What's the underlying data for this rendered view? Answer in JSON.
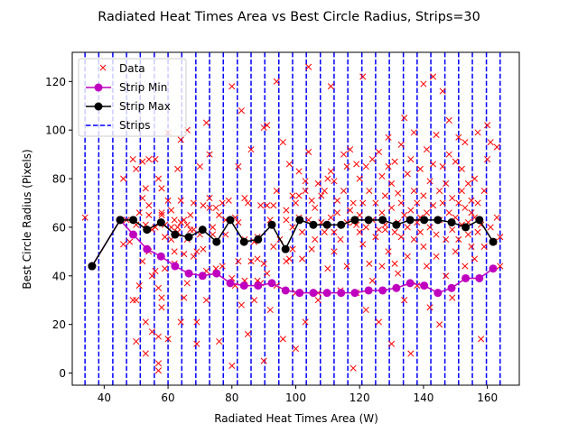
{
  "chart_data": {
    "type": "scatter",
    "title": "Radiated Heat Times Area vs Best Circle Radius, Strips=30",
    "xlabel": "Radiated Heat Times Area (W)",
    "ylabel": "Best Circle Radius (Pixels)",
    "xlim": [
      30,
      170
    ],
    "ylim": [
      -5,
      132
    ],
    "xticks": [
      40,
      60,
      80,
      100,
      120,
      140,
      160
    ],
    "yticks": [
      0,
      20,
      40,
      60,
      80,
      100,
      120
    ],
    "legend_position": "top-left",
    "legend": [
      "Data",
      "Strip Min",
      "Strip Max",
      "Strips"
    ],
    "colors": {
      "data": "#ff0000",
      "strip_min": "#bf00bf",
      "strip_max": "#000000",
      "strips": "#0000ff"
    },
    "strips_x": [
      34,
      38.3,
      42.7,
      47,
      51.3,
      55.7,
      60,
      64.3,
      68.7,
      73,
      77.3,
      81.7,
      86,
      90.3,
      94.7,
      99,
      103.3,
      107.7,
      112,
      116.3,
      120.7,
      125,
      129.3,
      133.7,
      138,
      142.3,
      146.7,
      151,
      155.3,
      159.7,
      164
    ],
    "strip_centers": [
      36.2,
      45,
      49.1,
      53.4,
      57.8,
      62.2,
      66.5,
      70.8,
      75.2,
      79.5,
      83.8,
      88.2,
      92.5,
      96.8,
      101.2,
      105.5,
      109.8,
      114.2,
      118.5,
      122.8,
      127.2,
      131.5,
      135.8,
      140.2,
      144.5,
      148.8,
      153.2,
      157.5,
      161.8
    ],
    "series": [
      {
        "name": "Strip Min",
        "values": [
          44,
          63,
          57,
          51,
          48,
          44,
          41,
          40,
          41,
          37,
          36,
          36,
          37,
          34,
          33,
          33,
          33,
          33,
          33,
          34,
          34,
          35,
          37,
          36,
          33,
          35,
          39,
          39,
          43
        ]
      },
      {
        "name": "Strip Max",
        "values": [
          44,
          63,
          63,
          59,
          62,
          57,
          56,
          59,
          54,
          63,
          54,
          55,
          61,
          51,
          63,
          61,
          61,
          61,
          63,
          63,
          63,
          61,
          63,
          63,
          63,
          62,
          60,
          63,
          54
        ]
      }
    ],
    "data_points": [
      [
        34,
        64
      ],
      [
        45,
        63
      ],
      [
        46,
        53
      ],
      [
        46,
        80
      ],
      [
        47,
        63
      ],
      [
        48,
        54
      ],
      [
        49,
        30
      ],
      [
        49,
        57
      ],
      [
        49,
        88
      ],
      [
        50,
        30
      ],
      [
        50,
        61
      ],
      [
        50,
        84
      ],
      [
        50,
        13
      ],
      [
        51,
        66
      ],
      [
        51,
        36
      ],
      [
        52,
        87
      ],
      [
        52,
        72
      ],
      [
        52,
        46
      ],
      [
        53,
        61
      ],
      [
        53,
        76
      ],
      [
        53,
        8
      ],
      [
        53,
        21
      ],
      [
        54,
        50
      ],
      [
        54,
        88
      ],
      [
        54,
        69
      ],
      [
        54,
        65
      ],
      [
        55,
        40
      ],
      [
        55,
        59
      ],
      [
        55,
        17
      ],
      [
        56,
        42
      ],
      [
        56,
        88
      ],
      [
        56,
        60
      ],
      [
        57,
        35
      ],
      [
        57,
        80
      ],
      [
        57,
        1
      ],
      [
        57,
        4
      ],
      [
        57,
        15
      ],
      [
        58,
        66
      ],
      [
        58,
        27
      ],
      [
        58,
        31
      ],
      [
        58,
        65
      ],
      [
        58,
        76
      ],
      [
        59,
        56
      ],
      [
        59,
        61
      ],
      [
        59,
        43
      ],
      [
        60,
        71
      ],
      [
        60,
        99
      ],
      [
        60,
        14
      ],
      [
        61,
        67
      ],
      [
        61,
        60
      ],
      [
        61,
        55
      ],
      [
        62,
        50
      ],
      [
        62,
        63
      ],
      [
        62,
        45
      ],
      [
        63,
        60
      ],
      [
        63,
        84
      ],
      [
        63,
        58
      ],
      [
        64,
        21
      ],
      [
        64,
        71
      ],
      [
        64,
        62
      ],
      [
        64,
        96
      ],
      [
        65,
        63
      ],
      [
        65,
        49
      ],
      [
        65,
        31
      ],
      [
        66,
        61
      ],
      [
        66,
        100
      ],
      [
        66,
        37
      ],
      [
        66,
        55
      ],
      [
        67,
        65
      ],
      [
        67,
        59
      ],
      [
        68,
        70
      ],
      [
        68,
        59
      ],
      [
        68,
        48
      ],
      [
        69,
        21
      ],
      [
        69,
        12
      ],
      [
        69,
        50
      ],
      [
        70,
        85
      ],
      [
        70,
        57
      ],
      [
        71,
        69
      ],
      [
        71,
        51
      ],
      [
        72,
        103
      ],
      [
        72,
        30
      ],
      [
        72,
        42
      ],
      [
        73,
        68
      ],
      [
        73,
        72
      ],
      [
        73,
        90
      ],
      [
        74,
        57
      ],
      [
        74,
        60
      ],
      [
        75,
        43
      ],
      [
        75,
        68
      ],
      [
        76,
        13
      ],
      [
        76,
        65
      ],
      [
        77,
        70
      ],
      [
        77,
        44
      ],
      [
        78,
        63
      ],
      [
        78,
        57
      ],
      [
        79,
        71
      ],
      [
        80,
        118
      ],
      [
        80,
        3
      ],
      [
        80,
        39
      ],
      [
        81,
        36
      ],
      [
        81,
        64
      ],
      [
        82,
        62
      ],
      [
        82,
        46
      ],
      [
        82,
        85
      ],
      [
        83,
        108
      ],
      [
        83,
        28
      ],
      [
        84,
        55
      ],
      [
        84,
        38
      ],
      [
        84,
        72
      ],
      [
        85,
        70
      ],
      [
        85,
        16
      ],
      [
        86,
        46
      ],
      [
        86,
        92
      ],
      [
        87,
        54
      ],
      [
        87,
        30
      ],
      [
        88,
        38
      ],
      [
        88,
        56
      ],
      [
        88,
        47
      ],
      [
        89,
        37
      ],
      [
        89,
        69
      ],
      [
        90,
        101
      ],
      [
        90,
        5
      ],
      [
        90,
        45
      ],
      [
        91,
        41
      ],
      [
        91,
        102
      ],
      [
        91,
        69
      ],
      [
        92,
        63
      ],
      [
        92,
        26
      ],
      [
        93,
        52
      ],
      [
        93,
        69
      ],
      [
        94,
        120
      ],
      [
        94,
        36
      ],
      [
        94,
        75
      ],
      [
        95,
        55
      ],
      [
        96,
        95
      ],
      [
        96,
        14
      ],
      [
        97,
        67
      ],
      [
        97,
        46
      ],
      [
        97,
        63
      ],
      [
        98,
        86
      ],
      [
        98,
        47
      ],
      [
        99,
        51
      ],
      [
        99,
        73
      ],
      [
        99,
        60
      ],
      [
        100,
        10
      ],
      [
        100,
        70
      ],
      [
        100,
        33
      ],
      [
        101,
        73
      ],
      [
        101,
        64
      ],
      [
        101,
        83
      ],
      [
        102,
        58
      ],
      [
        102,
        47
      ],
      [
        103,
        79
      ],
      [
        103,
        75
      ],
      [
        103,
        21
      ],
      [
        104,
        126
      ],
      [
        104,
        63
      ],
      [
        104,
        91
      ],
      [
        105,
        71
      ],
      [
        105,
        51
      ],
      [
        106,
        55
      ],
      [
        106,
        68
      ],
      [
        107,
        33
      ],
      [
        107,
        78
      ],
      [
        107,
        30
      ],
      [
        108,
        62
      ],
      [
        108,
        73
      ],
      [
        109,
        75
      ],
      [
        109,
        58
      ],
      [
        110,
        80
      ],
      [
        110,
        43
      ],
      [
        111,
        118
      ],
      [
        111,
        64
      ],
      [
        111,
        83
      ],
      [
        112,
        50
      ],
      [
        112,
        58
      ],
      [
        112,
        79
      ],
      [
        113,
        66
      ],
      [
        113,
        71
      ],
      [
        114,
        34
      ],
      [
        114,
        55
      ],
      [
        115,
        75
      ],
      [
        115,
        90
      ],
      [
        116,
        62
      ],
      [
        116,
        85
      ],
      [
        116,
        44
      ],
      [
        117,
        92
      ],
      [
        117,
        67
      ],
      [
        118,
        2
      ],
      [
        118,
        62
      ],
      [
        118,
        70
      ],
      [
        119,
        61
      ],
      [
        119,
        86
      ],
      [
        119,
        33
      ],
      [
        120,
        80
      ],
      [
        120,
        65
      ],
      [
        120,
        58
      ],
      [
        121,
        122
      ],
      [
        121,
        70
      ],
      [
        121,
        53
      ],
      [
        122,
        85
      ],
      [
        122,
        26
      ],
      [
        122,
        60
      ],
      [
        123,
        75
      ],
      [
        123,
        45
      ],
      [
        124,
        88
      ],
      [
        124,
        63
      ],
      [
        124,
        38
      ],
      [
        125,
        70
      ],
      [
        125,
        56
      ],
      [
        126,
        91
      ],
      [
        126,
        59
      ],
      [
        126,
        21
      ],
      [
        127,
        66
      ],
      [
        127,
        81
      ],
      [
        127,
        44
      ],
      [
        128,
        73
      ],
      [
        128,
        61
      ],
      [
        128,
        59
      ],
      [
        129,
        97
      ],
      [
        129,
        85
      ],
      [
        129,
        50
      ],
      [
        130,
        68
      ],
      [
        130,
        12
      ],
      [
        130,
        78
      ],
      [
        131,
        58
      ],
      [
        131,
        45
      ],
      [
        131,
        87
      ],
      [
        132,
        62
      ],
      [
        132,
        74
      ],
      [
        132,
        41
      ],
      [
        133,
        70
      ],
      [
        133,
        56
      ],
      [
        133,
        94
      ],
      [
        134,
        105
      ],
      [
        134,
        65
      ],
      [
        134,
        30
      ],
      [
        135,
        60
      ],
      [
        135,
        82
      ],
      [
        135,
        48
      ],
      [
        136,
        67
      ],
      [
        136,
        88
      ],
      [
        136,
        8
      ],
      [
        137,
        75
      ],
      [
        137,
        99
      ],
      [
        137,
        55
      ],
      [
        138,
        70
      ],
      [
        138,
        62
      ],
      [
        138,
        36
      ],
      [
        139,
        84
      ],
      [
        139,
        58
      ],
      [
        139,
        64
      ],
      [
        140,
        119
      ],
      [
        140,
        73
      ],
      [
        140,
        52
      ],
      [
        141,
        92
      ],
      [
        141,
        44
      ],
      [
        141,
        66
      ],
      [
        142,
        79
      ],
      [
        142,
        60
      ],
      [
        142,
        27
      ],
      [
        143,
        122
      ],
      [
        143,
        86
      ],
      [
        143,
        69
      ],
      [
        144,
        57
      ],
      [
        144,
        98
      ],
      [
        144,
        48
      ],
      [
        145,
        75
      ],
      [
        145,
        63
      ],
      [
        145,
        20
      ],
      [
        146,
        116
      ],
      [
        146,
        85
      ],
      [
        146,
        70
      ],
      [
        147,
        55
      ],
      [
        147,
        78
      ],
      [
        147,
        40
      ],
      [
        148,
        104
      ],
      [
        148,
        66
      ],
      [
        148,
        90
      ],
      [
        149,
        59
      ],
      [
        149,
        72
      ],
      [
        149,
        31
      ],
      [
        150,
        87
      ],
      [
        150,
        64
      ],
      [
        150,
        50
      ],
      [
        151,
        70
      ],
      [
        151,
        97
      ],
      [
        151,
        55
      ],
      [
        152,
        75
      ],
      [
        152,
        61
      ],
      [
        152,
        84
      ],
      [
        153,
        68
      ],
      [
        153,
        44
      ],
      [
        153,
        95
      ],
      [
        154,
        62
      ],
      [
        154,
        78
      ],
      [
        154,
        57
      ],
      [
        155,
        66
      ],
      [
        155,
        52
      ],
      [
        155,
        71
      ],
      [
        156,
        80
      ],
      [
        156,
        64
      ],
      [
        156,
        47
      ],
      [
        157,
        99
      ],
      [
        157,
        58
      ],
      [
        157,
        70
      ],
      [
        158,
        14
      ],
      [
        158,
        61
      ],
      [
        159,
        75
      ],
      [
        159,
        52
      ],
      [
        160,
        102
      ],
      [
        160,
        88
      ],
      [
        161,
        60
      ],
      [
        161,
        95
      ],
      [
        162,
        54
      ],
      [
        163,
        93
      ],
      [
        163,
        64
      ],
      [
        164,
        56
      ],
      [
        164,
        44
      ]
    ]
  }
}
